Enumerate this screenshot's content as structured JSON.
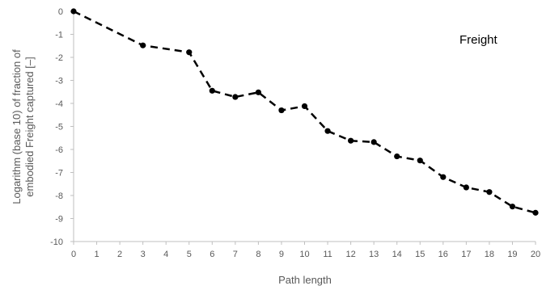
{
  "chart_data": {
    "type": "line",
    "title": "",
    "annotation": "Freight",
    "xlabel": "Path length",
    "ylabel_line1": "Logarithm (base 10) of fraction of",
    "ylabel_line2": "embodied Freight captured [–]",
    "xlim": [
      0,
      20
    ],
    "ylim": [
      -10,
      0
    ],
    "x_ticks": [
      0,
      1,
      2,
      3,
      4,
      5,
      6,
      7,
      8,
      9,
      10,
      11,
      12,
      13,
      14,
      15,
      16,
      17,
      18,
      19,
      20
    ],
    "y_ticks": [
      0,
      -1,
      -2,
      -3,
      -4,
      -5,
      -6,
      -7,
      -8,
      -9,
      -10
    ],
    "grid": false,
    "line_style": "dashed",
    "colors": {
      "line": "#000000",
      "axis": "#bfbfbf",
      "text": "#595959"
    },
    "series": [
      {
        "x": [
          0,
          3,
          5,
          6,
          7,
          8,
          9,
          10,
          11,
          12,
          13,
          14,
          15,
          16,
          17,
          18,
          19,
          20
        ],
        "values": [
          0,
          -1.48,
          -1.78,
          -3.45,
          -3.72,
          -3.52,
          -4.3,
          -4.12,
          -5.2,
          -5.62,
          -5.68,
          -6.3,
          -6.48,
          -7.2,
          -7.65,
          -7.85,
          -8.48,
          -8.75
        ]
      }
    ]
  }
}
